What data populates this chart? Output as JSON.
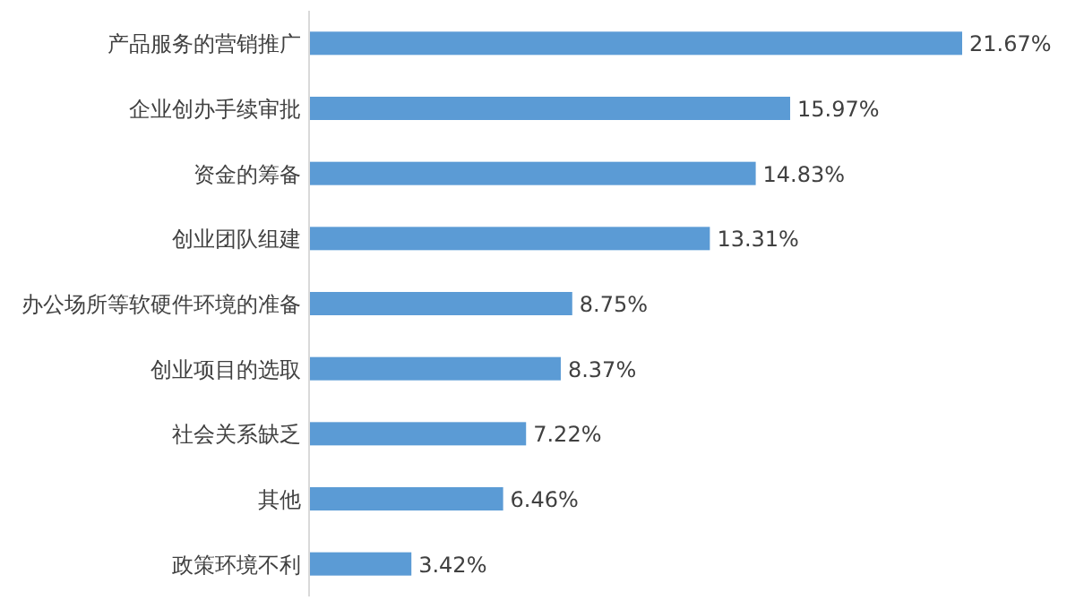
{
  "chart_data": {
    "type": "bar",
    "orientation": "horizontal",
    "data_labels": true,
    "categories": [
      "产品服务的营销推广",
      "企业创办手续审批",
      "资金的筹备",
      "创业团队组建",
      "办公场所等软硬件环境的准备",
      "创业项目的选取",
      "社会关系缺乏",
      "其他",
      "政策环境不利"
    ],
    "values": [
      21.67,
      15.97,
      14.83,
      13.31,
      8.75,
      8.37,
      7.22,
      6.46,
      3.42
    ],
    "color": "#5b9bd5",
    "value_labels": [
      "21.67%",
      "15.97%",
      "14.83%",
      "13.31%",
      "8.75%",
      "8.37%",
      "7.22%",
      "6.46%",
      "3.42%"
    ]
  }
}
